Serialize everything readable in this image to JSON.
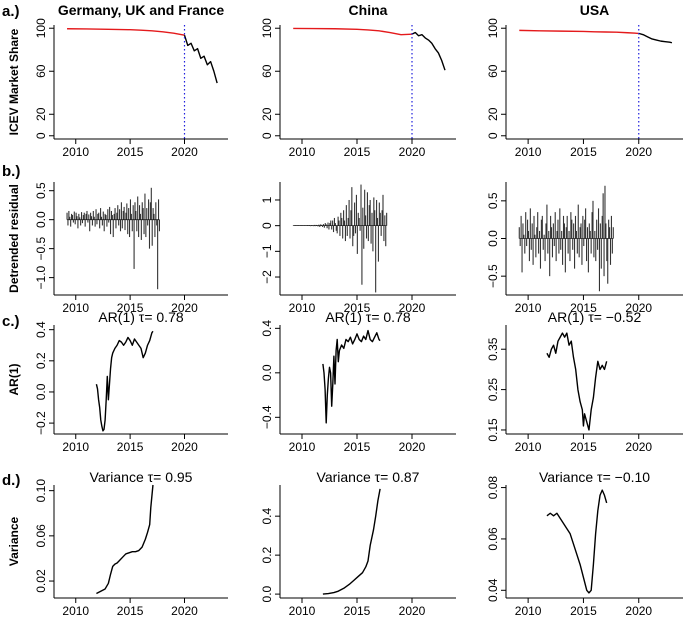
{
  "figure": {
    "row_labels": [
      "a.)",
      "b.)",
      "c.)",
      "d.)"
    ],
    "column_titles": [
      "Germany, UK and France",
      "China",
      "USA"
    ],
    "colors": {
      "ax": "#000000",
      "hist": "#e41a1c",
      "line": "#000000",
      "vline": "#1f1fdd",
      "bar": "#333333"
    }
  },
  "chart_data": [
    {
      "row": "a",
      "col": 0,
      "type": "line",
      "title": "Germany, UK and France",
      "ylabel": "ICEV Market Share",
      "xlim": [
        2008,
        2024
      ],
      "ylim": [
        -3,
        103
      ],
      "xticks": [
        2010,
        2015,
        2020
      ],
      "yticks": [
        0,
        20,
        60,
        100
      ],
      "vline": 2020,
      "series": [
        {
          "name": "historical",
          "color": "#e41a1c",
          "x": [
            2009.2,
            2011,
            2013,
            2015,
            2016,
            2017,
            2018,
            2019,
            2020
          ],
          "y": [
            99.5,
            99.3,
            99.0,
            98.6,
            98.2,
            97.6,
            96.7,
            95.4,
            93.5
          ]
        },
        {
          "name": "recent",
          "color": "#000000",
          "x": [
            2020,
            2020.3,
            2020.6,
            2020.9,
            2021.2,
            2021.5,
            2021.8,
            2022.1,
            2022.4,
            2022.7,
            2023.0
          ],
          "y": [
            93.5,
            84,
            86,
            79,
            81,
            72,
            74,
            66,
            69,
            60,
            49
          ]
        }
      ]
    },
    {
      "row": "a",
      "col": 1,
      "type": "line",
      "title": "China",
      "ylabel": "",
      "xlim": [
        2008,
        2024
      ],
      "ylim": [
        -3,
        103
      ],
      "xticks": [
        2010,
        2015,
        2020
      ],
      "yticks": [
        0,
        20,
        60,
        100
      ],
      "vline": 2020,
      "series": [
        {
          "name": "historical",
          "color": "#e41a1c",
          "x": [
            2009.2,
            2011,
            2013,
            2015,
            2016,
            2017,
            2018,
            2019,
            2020
          ],
          "y": [
            99.8,
            99.7,
            99.5,
            99.0,
            98.4,
            97.6,
            96.0,
            94.0,
            94.5
          ]
        },
        {
          "name": "recent",
          "color": "#000000",
          "x": [
            2020,
            2020.3,
            2020.6,
            2020.9,
            2021.2,
            2021.5,
            2021.8,
            2022.1,
            2022.4,
            2022.7,
            2023.0
          ],
          "y": [
            94.5,
            96,
            93,
            94,
            91,
            89,
            86,
            81,
            77,
            70,
            61
          ]
        }
      ]
    },
    {
      "row": "a",
      "col": 2,
      "type": "line",
      "title": "USA",
      "ylabel": "",
      "xlim": [
        2008,
        2024
      ],
      "ylim": [
        -3,
        103
      ],
      "xticks": [
        2010,
        2015,
        2020
      ],
      "yticks": [
        0,
        20,
        60,
        100
      ],
      "vline": 2020,
      "series": [
        {
          "name": "historical",
          "color": "#e41a1c",
          "x": [
            2009.2,
            2011,
            2013,
            2015,
            2016,
            2017,
            2018,
            2019,
            2020
          ],
          "y": [
            98.0,
            97.6,
            97.3,
            97.0,
            96.7,
            96.5,
            96.3,
            95.8,
            95.2
          ]
        },
        {
          "name": "recent",
          "color": "#000000",
          "x": [
            2020,
            2020.4,
            2020.8,
            2021.2,
            2021.6,
            2022.0,
            2022.4,
            2022.8,
            2023.0
          ],
          "y": [
            95.2,
            94,
            92,
            90,
            89,
            88,
            87.5,
            87,
            86.5
          ]
        }
      ]
    },
    {
      "row": "b",
      "col": 0,
      "type": "bar",
      "ylabel": "Detrended residual",
      "xlim": [
        2008,
        2024
      ],
      "ylim": [
        -1.3,
        0.65
      ],
      "xticks": [
        2010,
        2015,
        2020
      ],
      "yticks": [
        -1.0,
        -0.5,
        0.0,
        0.5
      ],
      "x_start": 2009.2,
      "x_step": 0.0833,
      "values": [
        0.12,
        -0.1,
        0.15,
        0.05,
        -0.12,
        0.1,
        0.08,
        -0.05,
        0.14,
        -0.08,
        0.12,
        0.06,
        -0.15,
        0.1,
        0.04,
        -0.1,
        0.13,
        -0.06,
        0.08,
        0.12,
        -0.12,
        0.1,
        0.15,
        -0.05,
        0.09,
        -0.2,
        0.12,
        0.06,
        -0.1,
        0.15,
        0.05,
        -0.12,
        0.18,
        -0.08,
        0.1,
        0.12,
        -0.15,
        0.2,
        0.05,
        -0.1,
        0.14,
        -0.2,
        0.1,
        0.08,
        -0.12,
        0.18,
        -0.05,
        0.22,
        -0.25,
        0.15,
        0.08,
        -0.3,
        0.1,
        0.2,
        -0.15,
        0.12,
        0.25,
        -0.1,
        0.18,
        -0.2,
        0.3,
        -0.15,
        0.15,
        0.22,
        -0.18,
        0.12,
        0.28,
        -0.25,
        0.2,
        -0.3,
        0.35,
        0.1,
        -0.2,
        0.25,
        -0.85,
        0.3,
        0.15,
        -0.2,
        0.4,
        -0.3,
        0.25,
        0.1,
        -0.35,
        0.3,
        0.2,
        -0.25,
        0.45,
        -0.3,
        0.2,
        -0.1,
        0.35,
        -0.5,
        0.3,
        0.55,
        -0.45,
        0.2,
        0.1,
        -0.3,
        0.3,
        -0.1,
        -1.2,
        0.35,
        -0.2
      ]
    },
    {
      "row": "b",
      "col": 1,
      "type": "bar",
      "ylabel": "",
      "xlim": [
        2008,
        2024
      ],
      "ylim": [
        -2.7,
        1.7
      ],
      "xticks": [
        2010,
        2015,
        2020
      ],
      "yticks": [
        -2,
        -1,
        0,
        1
      ],
      "x_start": 2009.2,
      "x_step": 0.0833,
      "values": [
        0.01,
        -0.01,
        0.01,
        0.0,
        -0.01,
        0.01,
        0.0,
        -0.01,
        0.01,
        0.0,
        0.01,
        -0.01,
        0.01,
        0.0,
        -0.01,
        0.01,
        0.02,
        -0.01,
        0.02,
        -0.02,
        0.02,
        0.01,
        -0.02,
        0.03,
        -0.02,
        0.03,
        0.02,
        -0.03,
        0.04,
        -0.05,
        0.05,
        0.03,
        -0.05,
        0.06,
        -0.08,
        0.1,
        0.05,
        -0.1,
        0.12,
        -0.15,
        0.1,
        0.2,
        -0.15,
        0.2,
        -0.25,
        0.3,
        0.1,
        -0.2,
        -0.3,
        0.35,
        0.2,
        -0.4,
        0.5,
        0.3,
        -0.5,
        0.6,
        0.2,
        -0.6,
        0.8,
        -0.4,
        0.3,
        1.0,
        -0.5,
        0.6,
        1.5,
        -0.8,
        -0.4,
        0.9,
        -0.3,
        1.2,
        -1.1,
        0.5,
        0.3,
        -0.2,
        1.6,
        -2.3,
        0.7,
        -0.9,
        1.4,
        0.4,
        -0.5,
        1.3,
        -0.6,
        0.8,
        1.0,
        -0.7,
        0.5,
        -1.0,
        1.1,
        0.6,
        -2.6,
        1.0,
        0.3,
        -1.4,
        0.9,
        0.5,
        -0.4,
        0.6,
        1.2,
        -0.6,
        0.4,
        -0.8,
        0.5
      ]
    },
    {
      "row": "b",
      "col": 2,
      "type": "bar",
      "ylabel": "",
      "xlim": [
        2008,
        2024
      ],
      "ylim": [
        -0.75,
        0.75
      ],
      "xticks": [
        2010,
        2015,
        2020
      ],
      "yticks": [
        -0.5,
        0.0,
        0.5
      ],
      "x_start": 2009.2,
      "x_step": 0.0833,
      "values": [
        0.15,
        -0.1,
        0.3,
        -0.45,
        0.2,
        0.05,
        -0.2,
        0.35,
        -0.1,
        0.25,
        0.1,
        -0.3,
        0.4,
        -0.15,
        0.2,
        -0.35,
        0.3,
        0.05,
        -0.25,
        0.15,
        0.35,
        -0.2,
        0.1,
        -0.4,
        0.25,
        0.3,
        -0.15,
        0.05,
        -0.3,
        0.2,
        0.45,
        -0.2,
        0.1,
        -0.5,
        0.3,
        0.15,
        -0.25,
        0.2,
        -0.1,
        0.35,
        -0.3,
        0.1,
        0.25,
        -0.2,
        0.4,
        -0.15,
        0.1,
        -0.35,
        0.3,
        0.2,
        -0.45,
        0.15,
        0.3,
        -0.2,
        0.1,
        -0.3,
        0.35,
        0.25,
        -0.15,
        0.2,
        -0.4,
        0.3,
        0.1,
        -0.2,
        0.45,
        -0.25,
        0.15,
        0.2,
        -0.35,
        0.3,
        -0.1,
        0.25,
        0.4,
        -0.3,
        0.15,
        -0.45,
        0.2,
        0.1,
        -0.2,
        0.35,
        0.5,
        -0.25,
        0.1,
        -0.3,
        0.25,
        -0.15,
        0.4,
        -0.7,
        0.2,
        -0.4,
        0.3,
        0.6,
        -0.5,
        0.7,
        0.2,
        -0.3,
        -0.6,
        0.25,
        0.15,
        -0.35,
        0.3,
        -0.2,
        0.15
      ]
    },
    {
      "row": "c",
      "col": 0,
      "type": "line",
      "title": "AR(1) τ= 0.78",
      "ylabel": "AR(1)",
      "xlim": [
        2008,
        2024
      ],
      "ylim": [
        -0.27,
        0.43
      ],
      "xticks": [
        2010,
        2015,
        2020
      ],
      "yticks": [
        -0.2,
        0.0,
        0.2,
        0.4
      ],
      "series": [
        {
          "name": "ar1",
          "color": "#000000",
          "x": [
            2011.9,
            2012.0,
            2012.1,
            2012.2,
            2012.3,
            2012.4,
            2012.5,
            2012.6,
            2012.7,
            2012.8,
            2012.9,
            2013.0,
            2013.1,
            2013.2,
            2013.3,
            2013.4,
            2013.6,
            2013.8,
            2014.0,
            2014.2,
            2014.4,
            2014.6,
            2014.8,
            2015.0,
            2015.2,
            2015.4,
            2015.6,
            2015.8,
            2016.0,
            2016.2,
            2016.4,
            2016.6,
            2016.8,
            2017.0,
            2017.1
          ],
          "y": [
            0.05,
            0.02,
            -0.05,
            -0.1,
            -0.18,
            -0.22,
            -0.25,
            -0.24,
            -0.18,
            -0.05,
            0.1,
            -0.05,
            0.05,
            0.15,
            0.22,
            0.25,
            0.28,
            0.3,
            0.33,
            0.32,
            0.3,
            0.32,
            0.35,
            0.33,
            0.3,
            0.34,
            0.32,
            0.3,
            0.28,
            0.22,
            0.25,
            0.3,
            0.33,
            0.38,
            0.39
          ]
        }
      ]
    },
    {
      "row": "c",
      "col": 1,
      "type": "line",
      "title": "AR(1) τ= 0.78",
      "ylabel": "",
      "xlim": [
        2008,
        2024
      ],
      "ylim": [
        -0.55,
        0.43
      ],
      "xticks": [
        2010,
        2015,
        2020
      ],
      "yticks": [
        -0.4,
        0.0,
        0.4
      ],
      "series": [
        {
          "name": "ar1",
          "color": "#000000",
          "x": [
            2011.9,
            2012.0,
            2012.1,
            2012.2,
            2012.3,
            2012.4,
            2012.5,
            2012.6,
            2012.7,
            2012.8,
            2012.9,
            2013.0,
            2013.1,
            2013.2,
            2013.3,
            2013.4,
            2013.6,
            2013.8,
            2014.0,
            2014.2,
            2014.4,
            2014.6,
            2014.8,
            2015.0,
            2015.2,
            2015.4,
            2015.6,
            2015.8,
            2016.0,
            2016.2,
            2016.4,
            2016.6,
            2016.8,
            2017.0,
            2017.1
          ],
          "y": [
            0.08,
            0.0,
            -0.15,
            -0.45,
            -0.2,
            -0.05,
            0.05,
            0.0,
            -0.3,
            -0.1,
            0.15,
            -0.1,
            0.2,
            0.3,
            0.1,
            0.2,
            0.25,
            0.22,
            0.3,
            0.28,
            0.32,
            0.26,
            0.3,
            0.35,
            0.3,
            0.28,
            0.33,
            0.3,
            0.38,
            0.3,
            0.28,
            0.32,
            0.36,
            0.3,
            0.29
          ]
        }
      ]
    },
    {
      "row": "c",
      "col": 2,
      "type": "line",
      "title": "AR(1) τ= −0.52",
      "ylabel": "",
      "xlim": [
        2008,
        2024
      ],
      "ylim": [
        0.14,
        0.41
      ],
      "xticks": [
        2010,
        2015,
        2020
      ],
      "yticks": [
        0.15,
        0.25,
        0.35
      ],
      "series": [
        {
          "name": "ar1",
          "color": "#000000",
          "x": [
            2011.7,
            2011.9,
            2012.1,
            2012.3,
            2012.5,
            2012.7,
            2012.9,
            2013.1,
            2013.3,
            2013.5,
            2013.7,
            2013.9,
            2014.1,
            2014.3,
            2014.5,
            2014.7,
            2014.9,
            2015.0,
            2015.1,
            2015.3,
            2015.5,
            2015.7,
            2015.9,
            2016.1,
            2016.3,
            2016.5,
            2016.7,
            2016.9,
            2017.1
          ],
          "y": [
            0.34,
            0.33,
            0.35,
            0.36,
            0.34,
            0.37,
            0.38,
            0.39,
            0.38,
            0.39,
            0.36,
            0.37,
            0.33,
            0.3,
            0.25,
            0.22,
            0.2,
            0.16,
            0.19,
            0.17,
            0.15,
            0.2,
            0.23,
            0.28,
            0.32,
            0.3,
            0.31,
            0.3,
            0.32
          ]
        }
      ]
    },
    {
      "row": "d",
      "col": 0,
      "type": "line",
      "title": "Variance τ= 0.95",
      "ylabel": "Variance",
      "xlim": [
        2008,
        2024
      ],
      "ylim": [
        0.005,
        0.105
      ],
      "xticks": [
        2010,
        2015,
        2020
      ],
      "yticks": [
        0.02,
        0.06,
        0.1
      ],
      "series": [
        {
          "name": "variance",
          "color": "#000000",
          "x": [
            2011.9,
            2012.3,
            2012.7,
            2013.0,
            2013.2,
            2013.4,
            2013.6,
            2013.8,
            2014.0,
            2014.3,
            2014.6,
            2014.9,
            2015.2,
            2015.5,
            2015.8,
            2016.1,
            2016.4,
            2016.6,
            2016.8,
            2016.9,
            2017.1
          ],
          "y": [
            0.009,
            0.011,
            0.013,
            0.018,
            0.026,
            0.033,
            0.035,
            0.036,
            0.038,
            0.041,
            0.044,
            0.045,
            0.046,
            0.046,
            0.047,
            0.05,
            0.057,
            0.063,
            0.07,
            0.085,
            0.105
          ]
        }
      ]
    },
    {
      "row": "d",
      "col": 1,
      "type": "line",
      "title": "Variance τ= 0.87",
      "ylabel": "",
      "xlim": [
        2008,
        2024
      ],
      "ylim": [
        -0.02,
        0.56
      ],
      "xticks": [
        2010,
        2015,
        2020
      ],
      "yticks": [
        0.0,
        0.2,
        0.4
      ],
      "series": [
        {
          "name": "variance",
          "color": "#000000",
          "x": [
            2011.9,
            2012.4,
            2012.9,
            2013.3,
            2013.8,
            2014.3,
            2014.7,
            2015.1,
            2015.5,
            2015.8,
            2016.0,
            2016.2,
            2016.5,
            2016.7,
            2016.9,
            2017.1
          ],
          "y": [
            0.0,
            0.003,
            0.008,
            0.015,
            0.03,
            0.05,
            0.07,
            0.09,
            0.11,
            0.14,
            0.17,
            0.25,
            0.33,
            0.4,
            0.48,
            0.54
          ]
        }
      ]
    },
    {
      "row": "d",
      "col": 2,
      "type": "line",
      "title": "Variance τ= −0.10",
      "ylabel": "",
      "xlim": [
        2008,
        2024
      ],
      "ylim": [
        0.037,
        0.081
      ],
      "xticks": [
        2010,
        2015,
        2020
      ],
      "yticks": [
        0.04,
        0.06,
        0.08
      ],
      "series": [
        {
          "name": "variance",
          "color": "#000000",
          "x": [
            2011.7,
            2012.0,
            2012.3,
            2012.6,
            2012.9,
            2013.2,
            2013.5,
            2013.8,
            2014.1,
            2014.4,
            2014.7,
            2015.0,
            2015.3,
            2015.5,
            2015.7,
            2015.9,
            2016.1,
            2016.3,
            2016.5,
            2016.7,
            2016.9,
            2017.1
          ],
          "y": [
            0.069,
            0.07,
            0.069,
            0.07,
            0.068,
            0.066,
            0.064,
            0.062,
            0.058,
            0.054,
            0.05,
            0.045,
            0.04,
            0.039,
            0.04,
            0.05,
            0.062,
            0.071,
            0.077,
            0.079,
            0.077,
            0.074
          ]
        }
      ]
    }
  ]
}
